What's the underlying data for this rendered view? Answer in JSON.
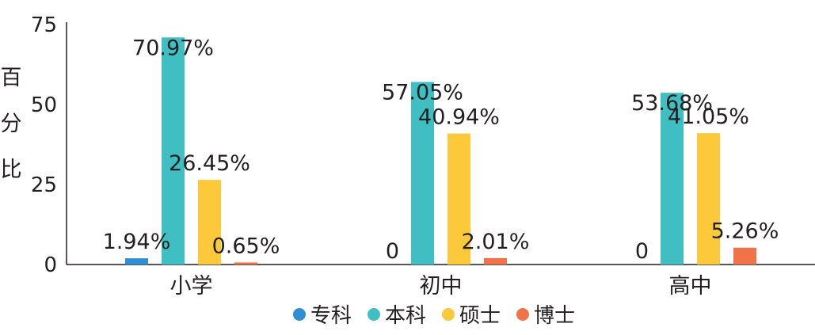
{
  "chart_data": {
    "type": "bar",
    "categories": [
      "小学",
      "初中",
      "高中"
    ],
    "series": [
      {
        "name": "专科",
        "values": [
          1.94,
          0,
          0
        ],
        "labels": [
          "1.94%",
          "0",
          "0"
        ],
        "color": "#2e8fd3"
      },
      {
        "name": "本科",
        "values": [
          70.97,
          57.05,
          53.68
        ],
        "labels": [
          "70.97%",
          "57.05%",
          "53.68%"
        ],
        "color": "#3fbfc2"
      },
      {
        "name": "硕士",
        "values": [
          26.45,
          40.94,
          41.05
        ],
        "labels": [
          "26.45%",
          "40.94%",
          "41.05%"
        ],
        "color": "#fcc93b"
      },
      {
        "name": "博士",
        "values": [
          0.65,
          2.01,
          5.26
        ],
        "labels": [
          "0.65%",
          "2.01%",
          "5.26%"
        ],
        "color": "#f0734a"
      }
    ],
    "ylabel": "百分比",
    "ylim": [
      0,
      75
    ],
    "yticks": [
      0,
      25,
      50,
      75
    ],
    "grid": false,
    "legend_position": "bottom"
  }
}
